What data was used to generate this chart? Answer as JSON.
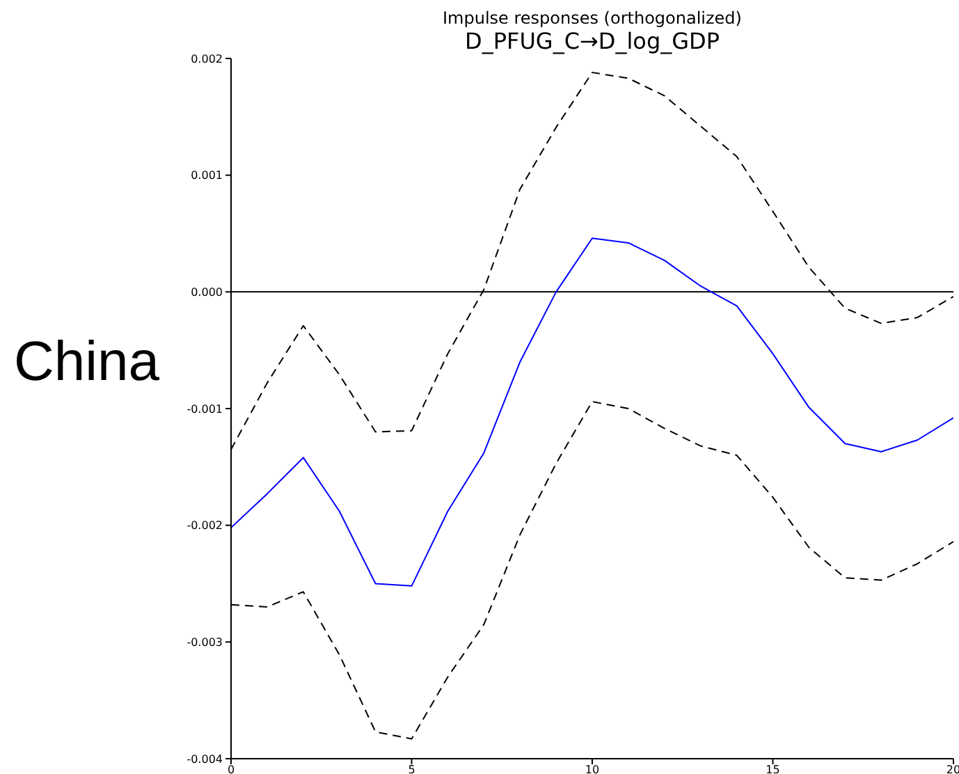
{
  "chart_data": {
    "type": "line",
    "title": "Impulse responses (orthogonalized)",
    "subtitle": "D_PFUG_C→D_log_GDP",
    "annotations": [
      "China"
    ],
    "x": [
      0,
      1,
      2,
      3,
      4,
      5,
      6,
      7,
      8,
      9,
      10,
      11,
      12,
      13,
      14,
      15,
      16,
      17,
      18,
      19,
      20
    ],
    "series": [
      {
        "color": "#0000ff",
        "line_style": "solid",
        "values": [
          -0.00202,
          -0.00173,
          -0.00142,
          -0.00188,
          -0.0025,
          -0.00252,
          -0.00188,
          -0.00138,
          -0.0006,
          0.0,
          0.00046,
          0.00042,
          0.00027,
          5e-05,
          -0.00012,
          -0.00053,
          -0.00099,
          -0.0013,
          -0.00137,
          -0.00127,
          -0.00108
        ]
      },
      {
        "color": "#000000",
        "line_style": "dashed",
        "values": [
          -0.00135,
          -0.00078,
          -0.00029,
          -0.00071,
          -0.0012,
          -0.00119,
          -0.00053,
          2e-05,
          0.00088,
          0.00141,
          0.00188,
          0.00183,
          0.00168,
          0.00142,
          0.00116,
          0.00069,
          0.00021,
          -0.00014,
          -0.00027,
          -0.00022,
          -4e-05
        ]
      },
      {
        "color": "#000000",
        "line_style": "dashed",
        "values": [
          -0.00268,
          -0.0027,
          -0.00257,
          -0.00311,
          -0.00377,
          -0.00383,
          -0.0033,
          -0.00285,
          -0.00208,
          -0.00147,
          -0.00094,
          -0.001,
          -0.00117,
          -0.00132,
          -0.0014,
          -0.00176,
          -0.00219,
          -0.00245,
          -0.00247,
          -0.00233,
          -0.00214
        ]
      }
    ],
    "xlim": [
      0,
      20
    ],
    "xticks": [
      0,
      5,
      10,
      15,
      20
    ],
    "ylim": [
      -0.004,
      0.002
    ],
    "yticks": [
      {
        "value": -0.004,
        "label": "-0.004"
      },
      {
        "value": -0.003,
        "label": "-0.003"
      },
      {
        "value": -0.002,
        "label": "-0.002"
      },
      {
        "value": -0.001,
        "label": "-0.001"
      },
      {
        "value": 0,
        "label": "0.000"
      },
      {
        "value": 0.001,
        "label": "0.001"
      },
      {
        "value": 0.002,
        "label": "0.002"
      }
    ],
    "ref_lines": [
      {
        "axis": "y",
        "value": 0,
        "color": "#000000",
        "line_style": "solid"
      }
    ],
    "grid": false,
    "legend": false,
    "marker": "none"
  }
}
